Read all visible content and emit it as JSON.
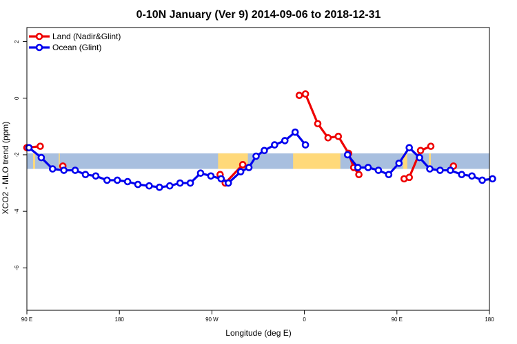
{
  "chart_data": {
    "type": "line",
    "title": "0-10N January (Ver 9)   2014-09-06 to 2018-12-31",
    "xlabel": "Longitude (deg E)",
    "ylabel": "XCO2 - MLO trend (ppm)",
    "xlim": [
      90,
      540
    ],
    "ylim": [
      -7.5,
      2.5
    ],
    "x_ticks": [
      {
        "value": 90,
        "label": "90 E"
      },
      {
        "value": 180,
        "label": "180"
      },
      {
        "value": 270,
        "label": "90 W"
      },
      {
        "value": 360,
        "label": "0"
      },
      {
        "value": 450,
        "label": "90 E"
      },
      {
        "value": 540,
        "label": "180"
      }
    ],
    "y_ticks": [
      {
        "value": 2,
        "label": "2"
      },
      {
        "value": 0,
        "label": "0"
      },
      {
        "value": -2,
        "label": "-2"
      },
      {
        "value": -4,
        "label": "-4"
      },
      {
        "value": -6,
        "label": "-6"
      }
    ],
    "legend": {
      "position": "top-left"
    },
    "background_band": {
      "y_range": [
        -2.5,
        -1.95
      ],
      "ocean_color": "#a8bfdf",
      "land_color": "#ffd97a",
      "land_x_ranges": [
        [
          96,
          98
        ],
        [
          121,
          122
        ],
        [
          276,
          305
        ],
        [
          349,
          395
        ],
        [
          456,
          460
        ],
        [
          481,
          483
        ]
      ]
    },
    "series": [
      {
        "name": "Land (Nadir&Glint)",
        "color": "#ee0000",
        "segments": [
          [
            [
              90,
              -1.75
            ],
            [
              103,
              -1.7
            ]
          ],
          [
            [
              125,
              -2.4
            ]
          ],
          [
            [
              278,
              -2.7
            ],
            [
              283,
              -3.0
            ],
            [
              300,
              -2.35
            ]
          ],
          [
            [
              355,
              0.1
            ],
            [
              361,
              0.15
            ],
            [
              373,
              -0.9
            ],
            [
              383,
              -1.4
            ],
            [
              393,
              -1.35
            ],
            [
              403,
              -1.95
            ],
            [
              408,
              -2.45
            ],
            [
              413,
              -2.7
            ]
          ],
          [
            [
              457,
              -2.85
            ],
            [
              462,
              -2.8
            ],
            [
              473,
              -1.85
            ],
            [
              483,
              -1.7
            ]
          ],
          [
            [
              505,
              -2.4
            ]
          ]
        ]
      },
      {
        "name": "Ocean (Glint)",
        "color": "#0000ee",
        "segments": [
          [
            [
              92,
              -1.75
            ],
            [
              104,
              -2.1
            ],
            [
              115,
              -2.5
            ],
            [
              126,
              -2.55
            ],
            [
              137,
              -2.55
            ],
            [
              147,
              -2.7
            ],
            [
              157,
              -2.75
            ],
            [
              168,
              -2.9
            ],
            [
              178,
              -2.9
            ],
            [
              188,
              -2.95
            ],
            [
              198,
              -3.05
            ],
            [
              209,
              -3.1
            ],
            [
              219,
              -3.15
            ],
            [
              229,
              -3.1
            ],
            [
              239,
              -3.0
            ],
            [
              249,
              -3.0
            ],
            [
              259,
              -2.65
            ],
            [
              269,
              -2.75
            ],
            [
              279,
              -2.85
            ],
            [
              286,
              -3.0
            ],
            [
              298,
              -2.6
            ],
            [
              306,
              -2.45
            ],
            [
              313,
              -2.05
            ],
            [
              321,
              -1.85
            ],
            [
              331,
              -1.65
            ],
            [
              341,
              -1.5
            ],
            [
              351,
              -1.2
            ],
            [
              361,
              -1.65
            ]
          ],
          [
            [
              402,
              -2.0
            ],
            [
              412,
              -2.45
            ],
            [
              422,
              -2.45
            ],
            [
              432,
              -2.55
            ],
            [
              442,
              -2.7
            ],
            [
              452,
              -2.3
            ],
            [
              462,
              -1.75
            ],
            [
              472,
              -2.1
            ],
            [
              482,
              -2.5
            ],
            [
              492,
              -2.55
            ],
            [
              502,
              -2.55
            ],
            [
              513,
              -2.7
            ],
            [
              523,
              -2.75
            ],
            [
              533,
              -2.9
            ],
            [
              543,
              -2.85
            ]
          ]
        ]
      }
    ]
  }
}
